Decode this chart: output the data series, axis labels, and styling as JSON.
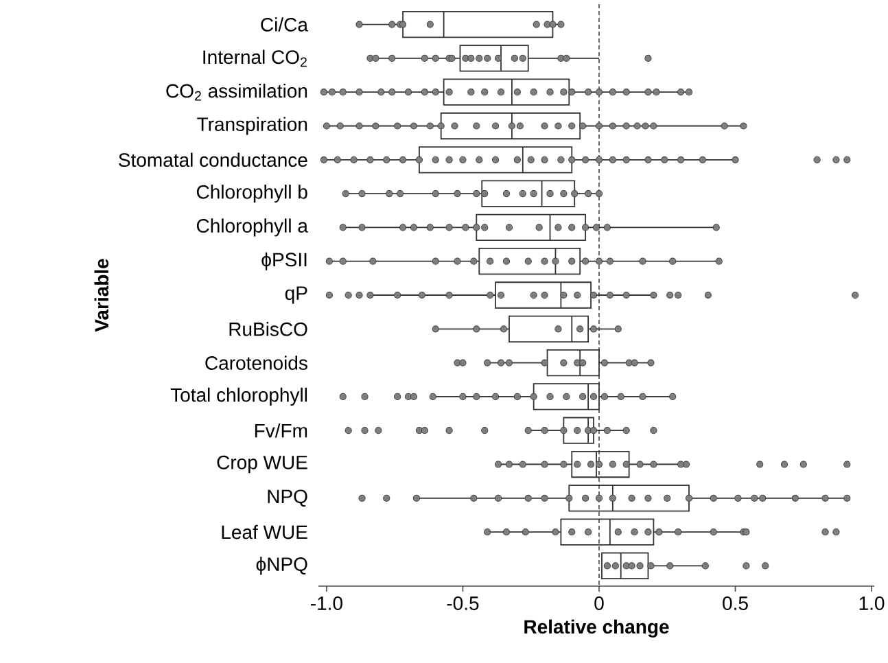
{
  "chart_data": {
    "type": "box",
    "orientation": "horizontal",
    "xlabel": "Relative change",
    "ylabel": "Variable",
    "categories": [
      "Ci/Ca",
      "Internal CO$_{2}$",
      "CO$_{2}$ assimilation",
      "Transpiration",
      "Stomatal conductance",
      "Chlorophyll b",
      "Chlorophyll a",
      "ϕPSII",
      "qP",
      "RuBisCO",
      "Carotenoids",
      "Total chlorophyll",
      "Fv/Fm",
      "Crop WUE",
      "NPQ",
      "Leaf WUE",
      "ϕNPQ"
    ],
    "xlim": [
      -1.03,
      1.01
    ],
    "xticks": [
      {
        "value": -1,
        "label": "-1.0"
      },
      -0.5,
      0,
      0.5,
      {
        "value": 1,
        "label": "1.0"
      }
    ],
    "ref_lines": [
      {
        "axis": "x",
        "value": 0,
        "line_style": "dashed"
      }
    ],
    "series": [
      {
        "type": "box",
        "color": "#333333",
        "boxes": [
          {
            "low": -0.88,
            "q1": -0.72,
            "median": -0.57,
            "q3": -0.17,
            "high": -0.14
          },
          {
            "low": -0.85,
            "q1": -0.51,
            "median": -0.36,
            "q3": -0.26,
            "high": 0.0
          },
          {
            "low": -1.01,
            "q1": -0.57,
            "median": -0.32,
            "q3": -0.11,
            "high": 0.33
          },
          {
            "low": -1.0,
            "q1": -0.58,
            "median": -0.32,
            "q3": -0.07,
            "high": 0.53
          },
          {
            "low": -1.01,
            "q1": -0.66,
            "median": -0.28,
            "q3": -0.1,
            "high": 0.5
          },
          {
            "low": -0.93,
            "q1": -0.43,
            "median": -0.21,
            "q3": -0.09,
            "high": 0.0
          },
          {
            "low": -0.94,
            "q1": -0.45,
            "median": -0.18,
            "q3": -0.05,
            "high": 0.43
          },
          {
            "low": -0.99,
            "q1": -0.44,
            "median": -0.16,
            "q3": -0.07,
            "high": 0.44
          },
          {
            "low": -0.85,
            "q1": -0.38,
            "median": -0.14,
            "q3": -0.03,
            "high": 0.2
          },
          {
            "low": -0.6,
            "q1": -0.33,
            "median": -0.1,
            "q3": -0.04,
            "high": 0.07
          },
          {
            "low": -0.41,
            "q1": -0.19,
            "median": -0.07,
            "q3": 0.0,
            "high": 0.19
          },
          {
            "low": -0.61,
            "q1": -0.24,
            "median": -0.04,
            "q3": 0.0,
            "high": 0.27
          },
          {
            "low": -0.26,
            "q1": -0.13,
            "median": -0.04,
            "q3": -0.02,
            "high": 0.1
          },
          {
            "low": -0.37,
            "q1": -0.1,
            "median": -0.01,
            "q3": 0.11,
            "high": 0.32
          },
          {
            "low": -0.67,
            "q1": -0.11,
            "median": 0.05,
            "q3": 0.33,
            "high": 0.91
          },
          {
            "low": -0.41,
            "q1": -0.14,
            "median": 0.04,
            "q3": 0.2,
            "high": 0.54
          },
          {
            "low": 0.01,
            "q1": 0.01,
            "median": 0.08,
            "q3": 0.18,
            "high": 0.39
          }
        ]
      },
      {
        "type": "scatter",
        "color": "#7f7f7f",
        "marker": "circle",
        "x": [
          "Ci/Ca",
          "Ci/Ca",
          "Ci/Ca",
          "Ci/Ca",
          "Ci/Ca",
          "Ci/Ca",
          "Ci/Ca",
          "Ci/Ca",
          "Ci/Ca",
          "Internal CO$_{2}$",
          "Internal CO$_{2}$",
          "Internal CO$_{2}$",
          "Internal CO$_{2}$",
          "Internal CO$_{2}$",
          "Internal CO$_{2}$",
          "Internal CO$_{2}$",
          "Internal CO$_{2}$",
          "Internal CO$_{2}$",
          "Internal CO$_{2}$",
          "Internal CO$_{2}$",
          "Internal CO$_{2}$",
          "Internal CO$_{2}$",
          "Internal CO$_{2}$",
          "Internal CO$_{2}$",
          "Internal CO$_{2}$",
          "Internal CO$_{2}$",
          "CO$_{2}$ assimilation",
          "CO$_{2}$ assimilation",
          "CO$_{2}$ assimilation",
          "CO$_{2}$ assimilation",
          "CO$_{2}$ assimilation",
          "CO$_{2}$ assimilation",
          "CO$_{2}$ assimilation",
          "CO$_{2}$ assimilation",
          "CO$_{2}$ assimilation",
          "CO$_{2}$ assimilation",
          "CO$_{2}$ assimilation",
          "CO$_{2}$ assimilation",
          "CO$_{2}$ assimilation",
          "CO$_{2}$ assimilation",
          "CO$_{2}$ assimilation",
          "CO$_{2}$ assimilation",
          "CO$_{2}$ assimilation",
          "CO$_{2}$ assimilation",
          "CO$_{2}$ assimilation",
          "CO$_{2}$ assimilation",
          "CO$_{2}$ assimilation",
          "CO$_{2}$ assimilation",
          "CO$_{2}$ assimilation",
          "CO$_{2}$ assimilation",
          "CO$_{2}$ assimilation",
          "CO$_{2}$ assimilation",
          "Transpiration",
          "Transpiration",
          "Transpiration",
          "Transpiration",
          "Transpiration",
          "Transpiration",
          "Transpiration",
          "Transpiration",
          "Transpiration",
          "Transpiration",
          "Transpiration",
          "Transpiration",
          "Transpiration",
          "Transpiration",
          "Transpiration",
          "Transpiration",
          "Transpiration",
          "Transpiration",
          "Transpiration",
          "Transpiration",
          "Transpiration",
          "Transpiration",
          "Transpiration",
          "Transpiration",
          "Transpiration",
          "Stomatal conductance",
          "Stomatal conductance",
          "Stomatal conductance",
          "Stomatal conductance",
          "Stomatal conductance",
          "Stomatal conductance",
          "Stomatal conductance",
          "Stomatal conductance",
          "Stomatal conductance",
          "Stomatal conductance",
          "Stomatal conductance",
          "Stomatal conductance",
          "Stomatal conductance",
          "Stomatal conductance",
          "Stomatal conductance",
          "Stomatal conductance",
          "Stomatal conductance",
          "Stomatal conductance",
          "Stomatal conductance",
          "Stomatal conductance",
          "Stomatal conductance",
          "Stomatal conductance",
          "Stomatal conductance",
          "Stomatal conductance",
          "Stomatal conductance",
          "Stomatal conductance",
          "Stomatal conductance",
          "Stomatal conductance",
          "Stomatal conductance",
          "Chlorophyll b",
          "Chlorophyll b",
          "Chlorophyll b",
          "Chlorophyll b",
          "Chlorophyll b",
          "Chlorophyll b",
          "Chlorophyll b",
          "Chlorophyll b",
          "Chlorophyll b",
          "Chlorophyll b",
          "Chlorophyll b",
          "Chlorophyll b",
          "Chlorophyll b",
          "Chlorophyll b",
          "Chlorophyll b",
          "Chlorophyll b",
          "Chlorophyll a",
          "Chlorophyll a",
          "Chlorophyll a",
          "Chlorophyll a",
          "Chlorophyll a",
          "Chlorophyll a",
          "Chlorophyll a",
          "Chlorophyll a",
          "Chlorophyll a",
          "Chlorophyll a",
          "Chlorophyll a",
          "Chlorophyll a",
          "Chlorophyll a",
          "Chlorophyll a",
          "Chlorophyll a",
          "Chlorophyll a",
          "Chlorophyll a",
          "ϕPSII",
          "ϕPSII",
          "ϕPSII",
          "ϕPSII",
          "ϕPSII",
          "ϕPSII",
          "ϕPSII",
          "ϕPSII",
          "ϕPSII",
          "ϕPSII",
          "ϕPSII",
          "ϕPSII",
          "ϕPSII",
          "ϕPSII",
          "ϕPSII",
          "ϕPSII",
          "ϕPSII",
          "ϕPSII",
          "qP",
          "qP",
          "qP",
          "qP",
          "qP",
          "qP",
          "qP",
          "qP",
          "qP",
          "qP",
          "qP",
          "qP",
          "qP",
          "qP",
          "qP",
          "qP",
          "qP",
          "qP",
          "qP",
          "qP",
          "qP",
          "RuBisCO",
          "RuBisCO",
          "RuBisCO",
          "RuBisCO",
          "RuBisCO",
          "RuBisCO",
          "RuBisCO",
          "Carotenoids",
          "Carotenoids",
          "Carotenoids",
          "Carotenoids",
          "Carotenoids",
          "Carotenoids",
          "Carotenoids",
          "Carotenoids",
          "Carotenoids",
          "Carotenoids",
          "Carotenoids",
          "Carotenoids",
          "Carotenoids",
          "Total chlorophyll",
          "Total chlorophyll",
          "Total chlorophyll",
          "Total chlorophyll",
          "Total chlorophyll",
          "Total chlorophyll",
          "Total chlorophyll",
          "Total chlorophyll",
          "Total chlorophyll",
          "Total chlorophyll",
          "Total chlorophyll",
          "Total chlorophyll",
          "Total chlorophyll",
          "Total chlorophyll",
          "Total chlorophyll",
          "Total chlorophyll",
          "Total chlorophyll",
          "Total chlorophyll",
          "Total chlorophyll",
          "Fv/Fm",
          "Fv/Fm",
          "Fv/Fm",
          "Fv/Fm",
          "Fv/Fm",
          "Fv/Fm",
          "Fv/Fm",
          "Fv/Fm",
          "Fv/Fm",
          "Fv/Fm",
          "Fv/Fm",
          "Fv/Fm",
          "Fv/Fm",
          "Fv/Fm",
          "Fv/Fm",
          "Fv/Fm",
          "Crop WUE",
          "Crop WUE",
          "Crop WUE",
          "Crop WUE",
          "Crop WUE",
          "Crop WUE",
          "Crop WUE",
          "Crop WUE",
          "Crop WUE",
          "Crop WUE",
          "Crop WUE",
          "Crop WUE",
          "Crop WUE",
          "Crop WUE",
          "Crop WUE",
          "Crop WUE",
          "Crop WUE",
          "Crop WUE",
          "NPQ",
          "NPQ",
          "NPQ",
          "NPQ",
          "NPQ",
          "NPQ",
          "NPQ",
          "NPQ",
          "NPQ",
          "NPQ",
          "NPQ",
          "NPQ",
          "NPQ",
          "NPQ",
          "NPQ",
          "NPQ",
          "NPQ",
          "NPQ",
          "NPQ",
          "NPQ",
          "NPQ",
          "NPQ",
          "Leaf WUE",
          "Leaf WUE",
          "Leaf WUE",
          "Leaf WUE",
          "Leaf WUE",
          "Leaf WUE",
          "Leaf WUE",
          "Leaf WUE",
          "Leaf WUE",
          "Leaf WUE",
          "Leaf WUE",
          "Leaf WUE",
          "Leaf WUE",
          "Leaf WUE",
          "Leaf WUE",
          "Leaf WUE",
          "ϕNPQ",
          "ϕNPQ",
          "ϕNPQ",
          "ϕNPQ",
          "ϕNPQ",
          "ϕNPQ",
          "ϕNPQ",
          "ϕNPQ",
          "ϕNPQ",
          "ϕNPQ"
        ],
        "values": [
          -0.88,
          -0.76,
          -0.73,
          -0.72,
          -0.62,
          -0.23,
          -0.19,
          -0.17,
          -0.14,
          -0.84,
          -0.82,
          -0.76,
          -0.64,
          -0.6,
          -0.55,
          -0.54,
          -0.49,
          -0.47,
          -0.44,
          -0.41,
          -0.37,
          -0.31,
          -0.28,
          -0.14,
          -0.12,
          0.18,
          -1.01,
          -0.98,
          -0.94,
          -0.88,
          -0.8,
          -0.76,
          -0.7,
          -0.64,
          -0.6,
          -0.55,
          -0.47,
          -0.42,
          -0.36,
          -0.3,
          -0.24,
          -0.18,
          -0.13,
          -0.1,
          -0.04,
          0.0,
          0.05,
          0.1,
          0.18,
          0.21,
          0.3,
          0.33,
          -1.0,
          -0.95,
          -0.88,
          -0.82,
          -0.74,
          -0.68,
          -0.62,
          -0.58,
          -0.53,
          -0.45,
          -0.38,
          -0.32,
          -0.29,
          -0.2,
          -0.15,
          -0.1,
          -0.06,
          0.0,
          0.05,
          0.1,
          0.14,
          0.17,
          0.2,
          0.46,
          0.53,
          -1.01,
          -0.96,
          -0.9,
          -0.84,
          -0.78,
          -0.72,
          -0.66,
          -0.6,
          -0.55,
          -0.5,
          -0.44,
          -0.38,
          -0.3,
          -0.25,
          -0.2,
          -0.14,
          -0.1,
          -0.05,
          0.0,
          0.05,
          0.1,
          0.18,
          0.24,
          0.3,
          0.38,
          0.5,
          0.8,
          0.87,
          0.91,
          -0.93,
          -0.87,
          -0.77,
          -0.73,
          -0.6,
          -0.52,
          -0.45,
          -0.42,
          -0.34,
          -0.28,
          -0.24,
          -0.18,
          -0.13,
          -0.09,
          -0.04,
          0.0,
          -0.94,
          -0.87,
          -0.72,
          -0.68,
          -0.62,
          -0.55,
          -0.49,
          -0.45,
          -0.42,
          -0.33,
          -0.22,
          -0.15,
          -0.1,
          -0.05,
          -0.01,
          0.03,
          0.43,
          -0.99,
          -0.94,
          -0.83,
          -0.6,
          -0.52,
          -0.46,
          -0.4,
          -0.34,
          -0.26,
          -0.2,
          -0.16,
          -0.1,
          -0.05,
          0.0,
          0.04,
          0.16,
          0.27,
          0.44,
          -0.99,
          -0.92,
          -0.88,
          -0.84,
          -0.74,
          -0.65,
          -0.55,
          -0.4,
          -0.36,
          -0.24,
          -0.2,
          -0.13,
          -0.08,
          -0.02,
          0.04,
          0.1,
          0.2,
          0.26,
          0.29,
          0.4,
          0.94,
          -0.6,
          -0.45,
          -0.35,
          -0.15,
          -0.07,
          -0.02,
          0.07,
          -0.52,
          -0.5,
          -0.41,
          -0.36,
          -0.33,
          -0.2,
          -0.13,
          -0.08,
          -0.06,
          0.02,
          0.11,
          0.13,
          0.19,
          -0.94,
          -0.86,
          -0.74,
          -0.7,
          -0.68,
          -0.61,
          -0.5,
          -0.45,
          -0.38,
          -0.3,
          -0.24,
          -0.18,
          -0.12,
          -0.06,
          -0.02,
          0.02,
          0.08,
          0.16,
          0.27,
          -0.92,
          -0.86,
          -0.81,
          -0.66,
          -0.64,
          -0.55,
          -0.42,
          -0.26,
          -0.2,
          -0.13,
          -0.08,
          -0.04,
          -0.02,
          0.03,
          0.1,
          0.2,
          -0.37,
          -0.33,
          -0.28,
          -0.2,
          -0.13,
          -0.08,
          -0.03,
          0.0,
          0.05,
          0.1,
          0.15,
          0.2,
          0.3,
          0.32,
          0.59,
          0.68,
          0.75,
          0.91,
          -0.87,
          -0.78,
          -0.67,
          -0.46,
          -0.37,
          -0.26,
          -0.2,
          -0.11,
          -0.05,
          0.0,
          0.05,
          0.12,
          0.18,
          0.25,
          0.33,
          0.42,
          0.51,
          0.57,
          0.6,
          0.72,
          0.83,
          0.91,
          -0.41,
          -0.34,
          -0.27,
          -0.16,
          -0.1,
          -0.04,
          0.07,
          0.13,
          0.18,
          0.22,
          0.29,
          0.42,
          0.53,
          0.54,
          0.83,
          0.87,
          0.03,
          0.06,
          0.1,
          0.12,
          0.15,
          0.19,
          0.26,
          0.39,
          0.54,
          0.61
        ]
      }
    ]
  }
}
